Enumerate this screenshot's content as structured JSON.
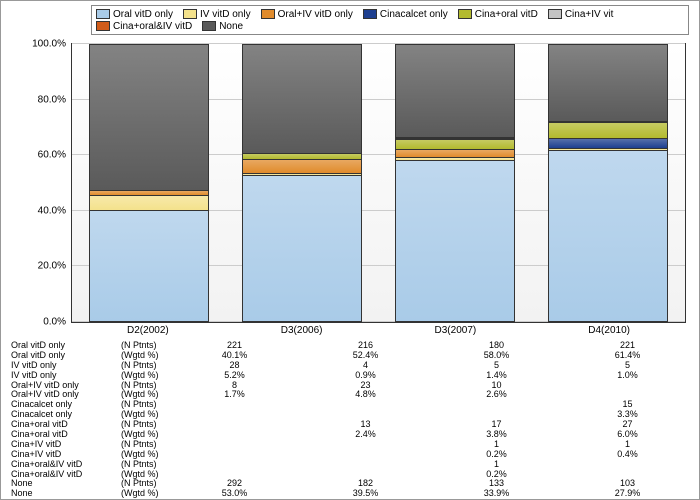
{
  "chart": {
    "type": "stacked-bar-100pct",
    "background": "#ffffff",
    "ylim": [
      0,
      100
    ],
    "ytick_step": 20,
    "yticks": [
      "0.0%",
      "20.0%",
      "40.0%",
      "60.0%",
      "80.0%",
      "100.0%"
    ],
    "grid_color": "#cccccc",
    "categories": [
      "D2(2002)",
      "D3(2006)",
      "D3(2007)",
      "D4(2010)"
    ],
    "series": [
      {
        "key": "oral_vitd_only",
        "label": "Oral vitD only",
        "color": "#a9cbe8"
      },
      {
        "key": "iv_vitd_only",
        "label": "IV vitD only",
        "color": "#f4e28c"
      },
      {
        "key": "oral_iv_vitd_only",
        "label": "Oral+IV vitD only",
        "color": "#e08b2c"
      },
      {
        "key": "cinacalcet_only",
        "label": "Cinacalcet only",
        "color": "#1e3f8f"
      },
      {
        "key": "cina_oral_vitd",
        "label": "Cina+oral vitD",
        "color": "#b3ba2e"
      },
      {
        "key": "cina_iv_vitd",
        "label": "Cina+IV vit",
        "color": "#c4c4c4"
      },
      {
        "key": "cina_oral_iv_vitd",
        "label": "Cina+oral&IV vitD",
        "color": "#d15c1a"
      },
      {
        "key": "none",
        "label": "None",
        "color": "#5a5a5a"
      }
    ],
    "values_pct": {
      "D2(2002)": {
        "oral_vitd_only": 40.1,
        "iv_vitd_only": 5.2,
        "oral_iv_vitd_only": 1.7,
        "cinacalcet_only": 0,
        "cina_oral_vitd": 0,
        "cina_iv_vitd": 0,
        "cina_oral_iv_vitd": 0,
        "none": 53.0
      },
      "D3(2006)": {
        "oral_vitd_only": 52.4,
        "iv_vitd_only": 0.9,
        "oral_iv_vitd_only": 4.8,
        "cinacalcet_only": 0,
        "cina_oral_vitd": 2.4,
        "cina_iv_vitd": 0,
        "cina_oral_iv_vitd": 0,
        "none": 39.5
      },
      "D3(2007)": {
        "oral_vitd_only": 58.0,
        "iv_vitd_only": 1.4,
        "oral_iv_vitd_only": 2.6,
        "cinacalcet_only": 0,
        "cina_oral_vitd": 3.8,
        "cina_iv_vitd": 0.2,
        "cina_oral_iv_vitd": 0.2,
        "none": 33.9
      },
      "D4(2010)": {
        "oral_vitd_only": 61.4,
        "iv_vitd_only": 1.0,
        "oral_iv_vitd_only": 0,
        "cinacalcet_only": 3.3,
        "cina_oral_vitd": 6.0,
        "cina_iv_vitd": 0.4,
        "cina_oral_iv_vitd": 0,
        "none": 27.9
      }
    }
  },
  "table": {
    "row_labels": {
      "oral_vitd_only": "Oral vitD only",
      "iv_vitd_only": "IV vitD only",
      "oral_iv_vitd_only": "Oral+IV vitD only",
      "cinacalcet_only": "Cinacalcet only",
      "cina_oral_vitd": "Cina+oral vitD",
      "cina_iv_vitd": "Cina+IV vitD",
      "cina_oral_iv_vitd": "Cina+oral&IV vitD",
      "none": "None"
    },
    "sub_n": "(N Ptnts)",
    "sub_w": "(Wgtd %)",
    "rows": [
      {
        "k": "oral_vitd_only",
        "n": [
          "221",
          "216",
          "180",
          "221"
        ],
        "w": [
          "40.1%",
          "52.4%",
          "58.0%",
          "61.4%"
        ]
      },
      {
        "k": "iv_vitd_only",
        "n": [
          "28",
          "4",
          "5",
          "5"
        ],
        "w": [
          "5.2%",
          "0.9%",
          "1.4%",
          "1.0%"
        ]
      },
      {
        "k": "oral_iv_vitd_only",
        "n": [
          "8",
          "23",
          "10",
          ""
        ],
        "w": [
          "1.7%",
          "4.8%",
          "2.6%",
          ""
        ]
      },
      {
        "k": "cinacalcet_only",
        "n": [
          "",
          "",
          "",
          "15"
        ],
        "w": [
          "",
          "",
          "",
          "3.3%"
        ]
      },
      {
        "k": "cina_oral_vitd",
        "n": [
          "",
          "13",
          "17",
          "27"
        ],
        "w": [
          "",
          "2.4%",
          "3.8%",
          "6.0%"
        ]
      },
      {
        "k": "cina_iv_vitd",
        "n": [
          "",
          "",
          "1",
          "1"
        ],
        "w": [
          "",
          "",
          "0.2%",
          "0.4%"
        ]
      },
      {
        "k": "cina_oral_iv_vitd",
        "n": [
          "",
          "",
          "1",
          ""
        ],
        "w": [
          "",
          "",
          "0.2%",
          ""
        ]
      },
      {
        "k": "none",
        "n": [
          "292",
          "182",
          "133",
          "103"
        ],
        "w": [
          "53.0%",
          "39.5%",
          "33.9%",
          "27.9%"
        ]
      }
    ]
  }
}
